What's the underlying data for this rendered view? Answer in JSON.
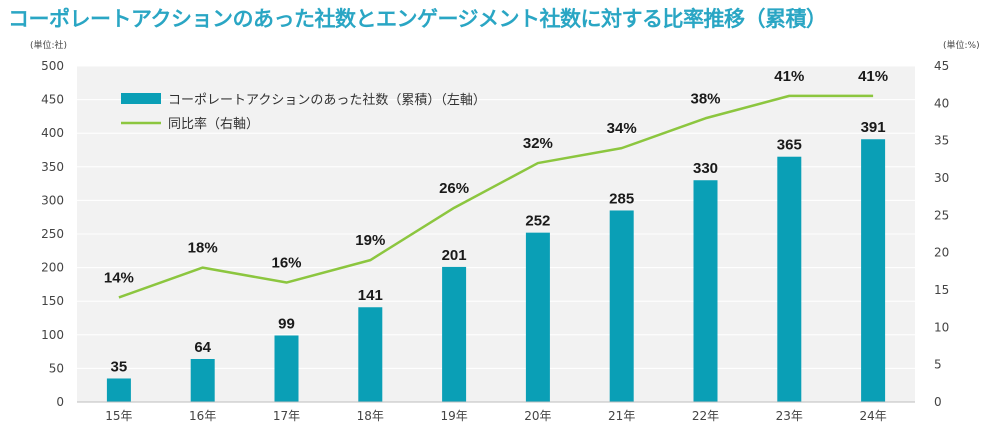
{
  "chart_data": {
    "type": "bar",
    "title": "コーポレートアクションのあった社数とエンゲージメント社数に対する比率推移（累積）",
    "categories": [
      "15年",
      "16年",
      "17年",
      "18年",
      "19年",
      "20年",
      "21年",
      "22年",
      "23年",
      "24年"
    ],
    "series": [
      {
        "name": "コーポレートアクションのあった社数（累積）（左軸）",
        "type": "bar",
        "axis": "left",
        "color": "#0a9fb6",
        "values": [
          35,
          64,
          99,
          141,
          201,
          252,
          285,
          330,
          365,
          391
        ],
        "labels": [
          "35",
          "64",
          "99",
          "141",
          "201",
          "252",
          "285",
          "330",
          "365",
          "391"
        ]
      },
      {
        "name": "同比率（右軸）",
        "type": "line",
        "axis": "right",
        "color": "#8cc63f",
        "values": [
          14,
          18,
          16,
          19,
          26,
          32,
          34,
          38,
          41,
          41
        ],
        "labels": [
          "14%",
          "18%",
          "16%",
          "19%",
          "26%",
          "32%",
          "34%",
          "38%",
          "41%",
          "41%"
        ]
      }
    ],
    "y_left": {
      "unit": "(単位:社)",
      "ylim": [
        0,
        500
      ],
      "ticks": [
        "0",
        "50",
        "100",
        "150",
        "200",
        "250",
        "300",
        "350",
        "400",
        "450",
        "500"
      ]
    },
    "y_right": {
      "unit": "(単位:%)",
      "ylim": [
        0,
        45
      ],
      "ticks": [
        "0",
        "5",
        "10",
        "15",
        "20",
        "25",
        "30",
        "35",
        "40",
        "45"
      ]
    },
    "grid": true,
    "legend_position": "top-left"
  }
}
